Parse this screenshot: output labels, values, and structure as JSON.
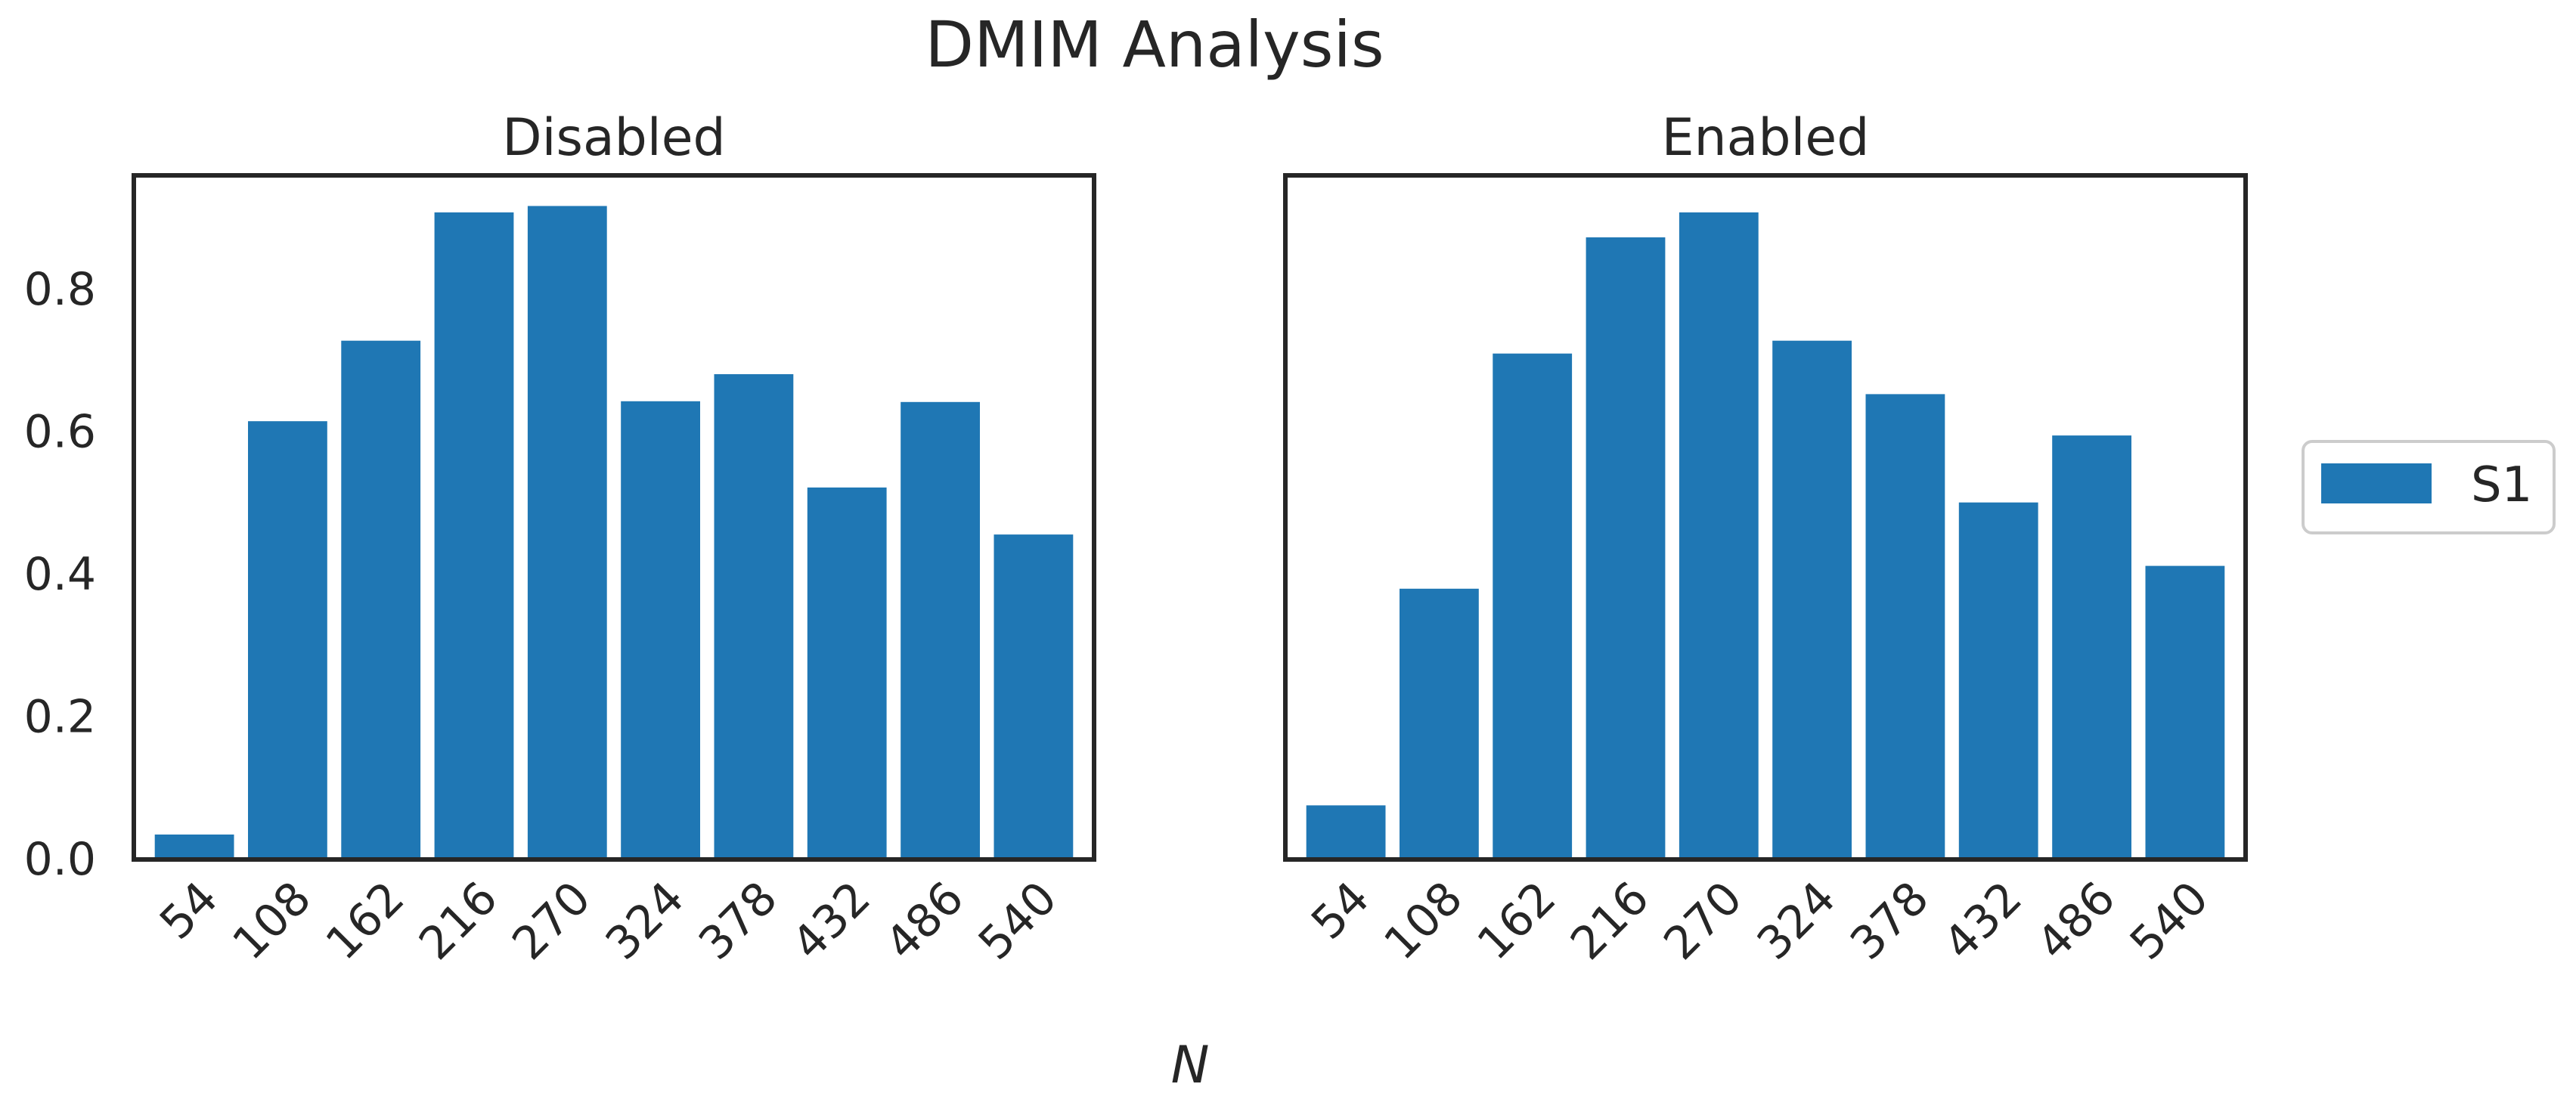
{
  "chart_data": {
    "type": "bar",
    "title": "DMIM Analysis",
    "xlabel": "N",
    "ylabel": "",
    "ylim": [
      0,
      0.96
    ],
    "yticks": [
      "0.0",
      "0.2",
      "0.4",
      "0.6",
      "0.8"
    ],
    "categories": [
      "54",
      "108",
      "162",
      "216",
      "270",
      "324",
      "378",
      "432",
      "486",
      "540"
    ],
    "legend": {
      "position": "right",
      "entries": [
        "S1"
      ]
    },
    "grid": false,
    "bar_color": "#1f77b4",
    "panels": [
      {
        "title": "Disabled",
        "series": [
          {
            "name": "S1",
            "values": [
              0.035,
              0.615,
              0.728,
              0.908,
              0.917,
              0.643,
              0.681,
              0.522,
              0.642,
              0.456
            ]
          }
        ]
      },
      {
        "title": "Enabled",
        "series": [
          {
            "name": "S1",
            "values": [
              0.076,
              0.38,
              0.71,
              0.873,
              0.908,
              0.728,
              0.653,
              0.501,
              0.595,
              0.412
            ]
          }
        ]
      }
    ]
  }
}
